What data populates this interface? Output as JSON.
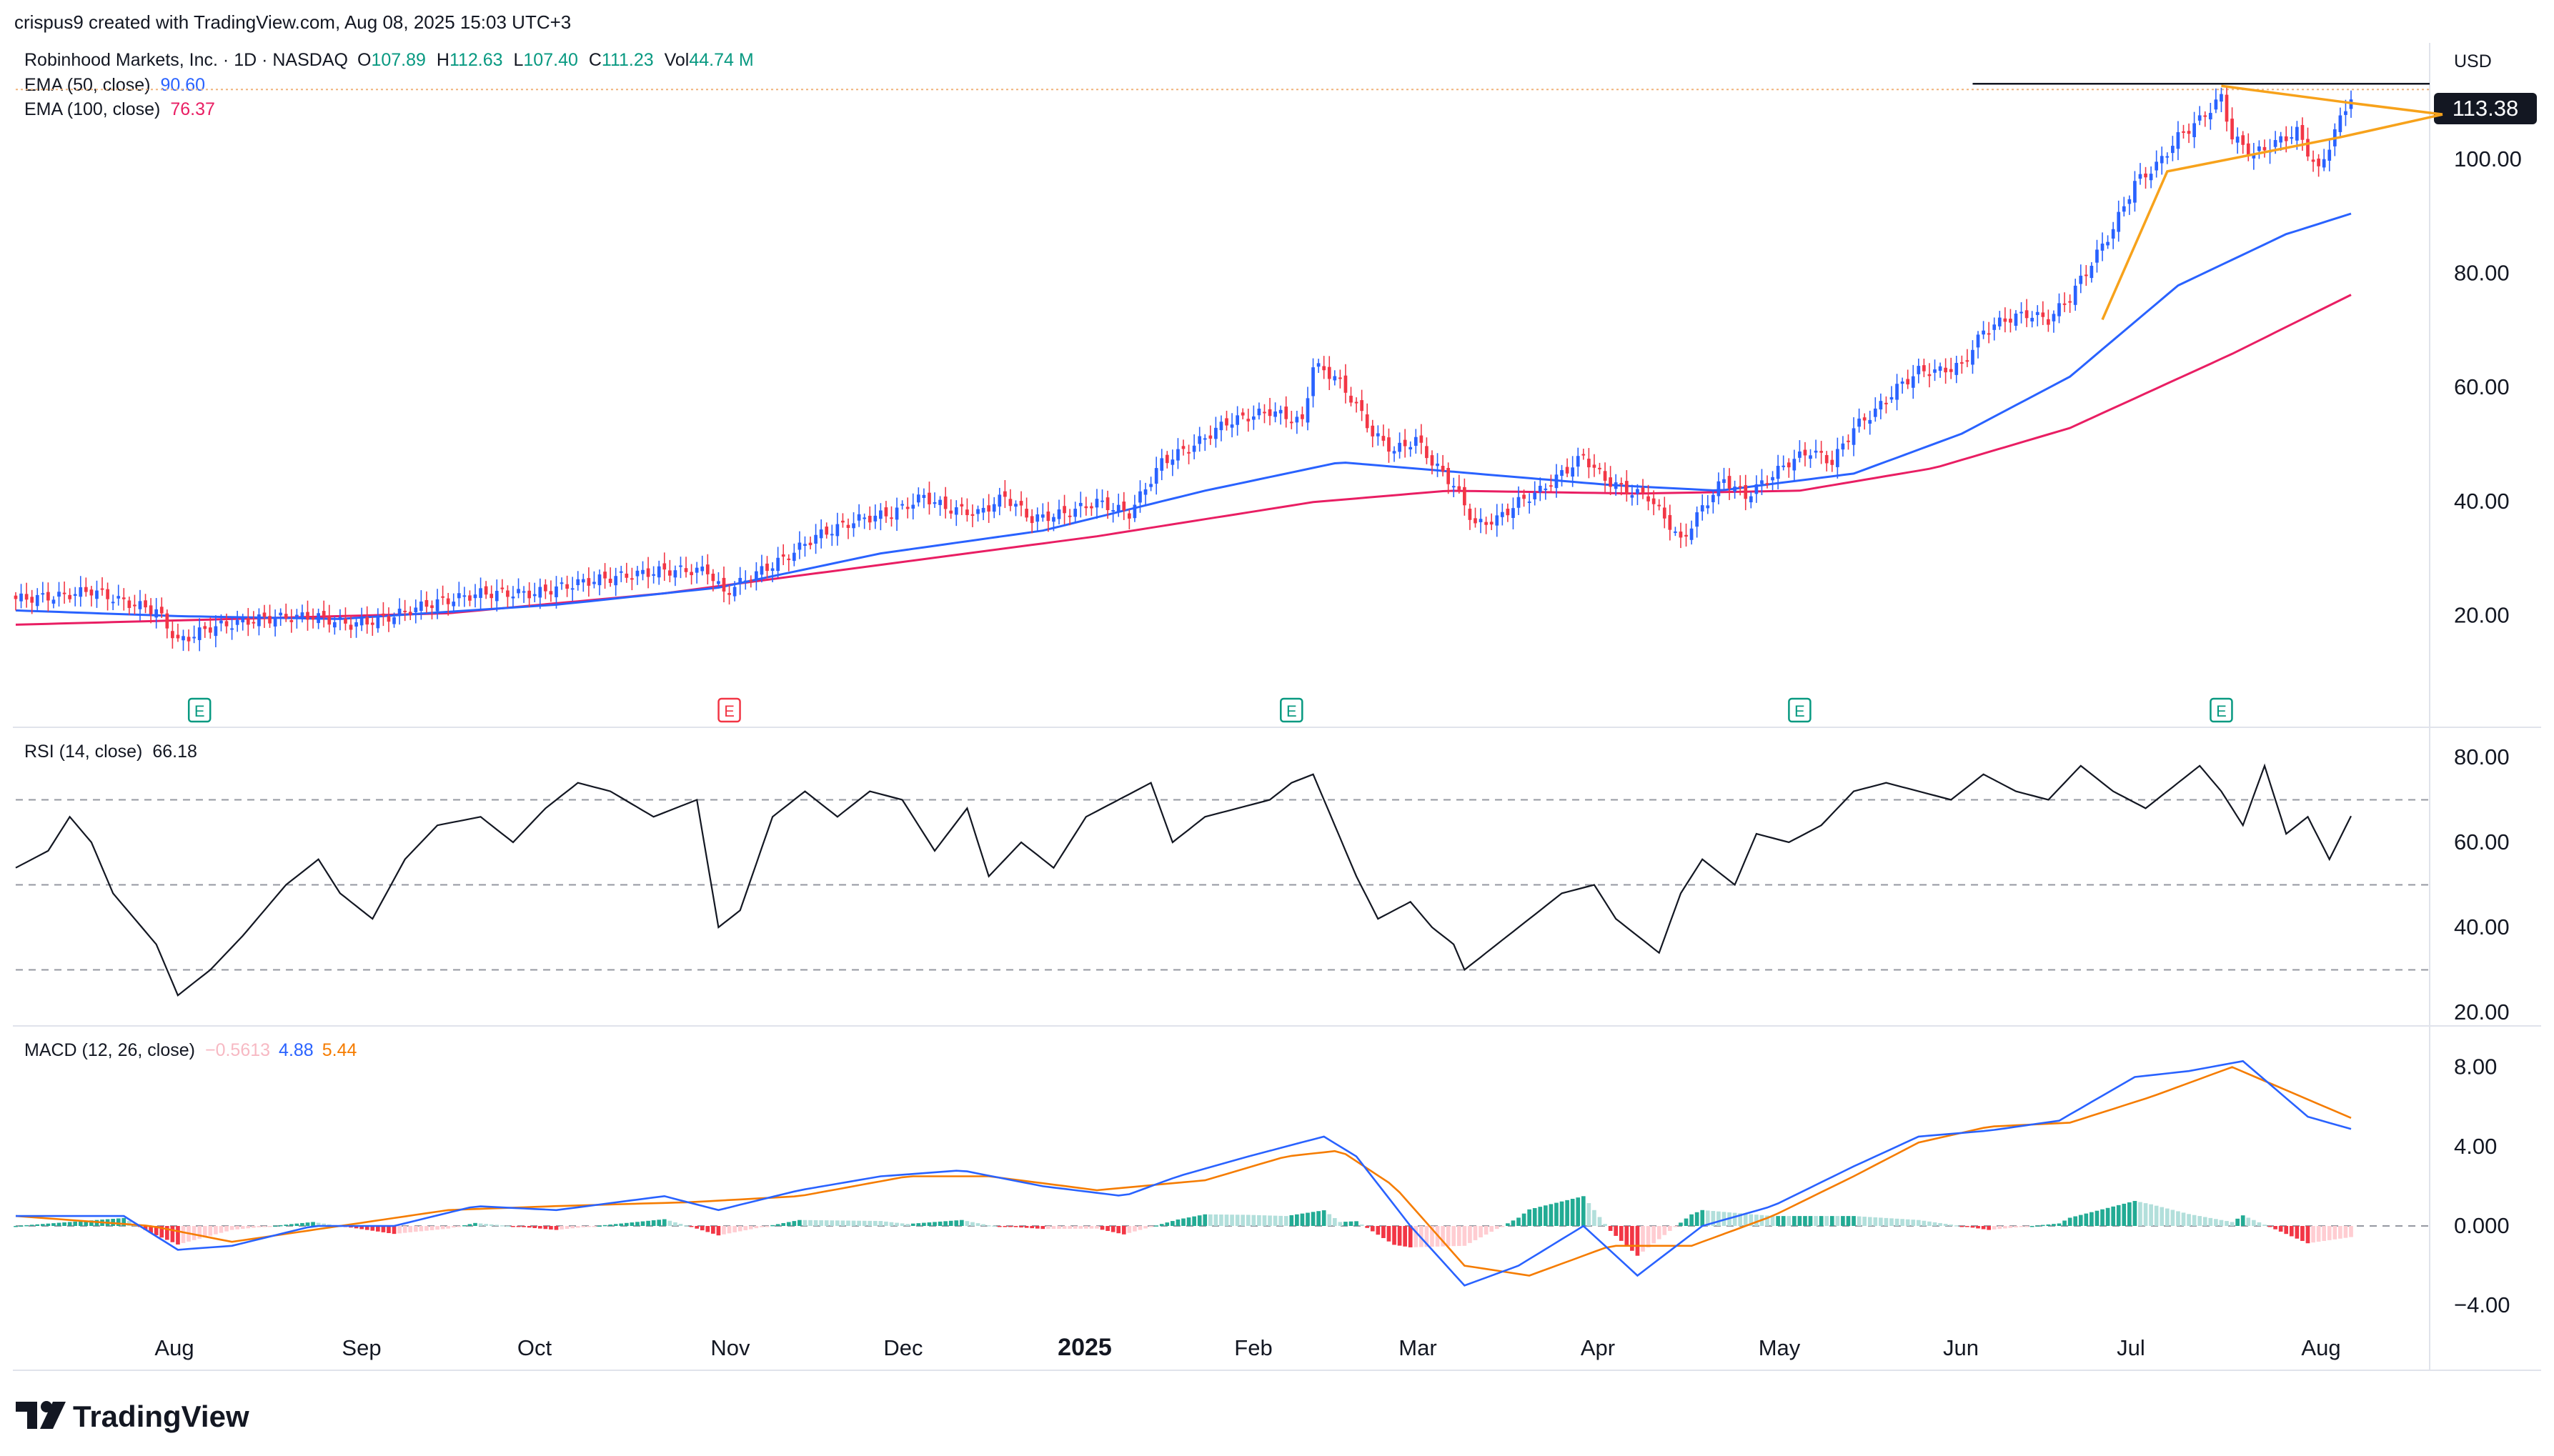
{
  "header": {
    "creator_line": "crispus9 created with TradingView.com, Aug 08, 2025 15:03 UTC+3",
    "symbol_title": "Robinhood Markets, Inc. · 1D · NASDAQ",
    "ohlc": [
      {
        "key": "O",
        "value": "107.89"
      },
      {
        "key": "H",
        "value": "112.63"
      },
      {
        "key": "L",
        "value": "107.40"
      },
      {
        "key": "C",
        "value": "111.23"
      },
      {
        "key": "Vol",
        "value": "44.74 M"
      }
    ],
    "ema50": {
      "label": "EMA (50, close)",
      "value": "90.60"
    },
    "ema100": {
      "label": "EMA (100, close)",
      "value": "76.37"
    }
  },
  "price_axis": {
    "currency": "USD",
    "last_price": "113.38",
    "ticks": [
      "100.00",
      "80.00",
      "60.00",
      "40.00",
      "20.00"
    ]
  },
  "rsi": {
    "label": "RSI (14, close)",
    "value": "66.18",
    "ticks": [
      "80.00",
      "60.00",
      "40.00",
      "20.00"
    ]
  },
  "macd": {
    "label": "MACD (12, 26, close)",
    "hist_value": "−0.5613",
    "macd_value": "4.88",
    "signal_value": "5.44",
    "ticks": [
      "8.00",
      "4.00",
      "0.000",
      "−4.00"
    ]
  },
  "time_axis": [
    "Aug",
    "Sep",
    "Oct",
    "Nov",
    "Dec",
    "2025",
    "Feb",
    "Mar",
    "Apr",
    "May",
    "Jun",
    "Jul",
    "Aug"
  ],
  "earnings_markers": [
    {
      "label": "E",
      "color": "#089981"
    },
    {
      "label": "E",
      "color": "#f23645"
    },
    {
      "label": "E",
      "color": "#089981"
    },
    {
      "label": "E",
      "color": "#089981"
    },
    {
      "label": "E",
      "color": "#089981"
    }
  ],
  "logo": {
    "text": "TradingView"
  },
  "colors": {
    "up": "#2962ff",
    "down": "#f23645",
    "ema50": "#2962ff",
    "ema100": "#e91e63",
    "rsi": "#131722",
    "macd_line": "#2962ff",
    "signal_line": "#f57c00",
    "hist_up": "#22ab94",
    "hist_down": "#f23645",
    "pattern": "#f7a21b"
  },
  "chart_data": [
    {
      "type": "candlestick",
      "title": "Robinhood Markets, Inc. · 1D · NASDAQ",
      "ylabel": "USD",
      "ylim": [
        8,
        118
      ],
      "x_labels": [
        "Aug",
        "Sep",
        "Oct",
        "Nov",
        "Dec",
        "2025",
        "Feb",
        "Mar",
        "Apr",
        "May",
        "Jun",
        "Jul",
        "Aug"
      ],
      "price_path": [
        [
          0,
          23
        ],
        [
          8,
          23.5
        ],
        [
          14,
          24.5
        ],
        [
          20,
          22.5
        ],
        [
          26,
          21
        ],
        [
          30,
          15.5
        ],
        [
          36,
          18
        ],
        [
          45,
          19.5
        ],
        [
          55,
          20
        ],
        [
          62,
          18.5
        ],
        [
          68,
          19.5
        ],
        [
          76,
          22
        ],
        [
          86,
          24
        ],
        [
          96,
          24
        ],
        [
          105,
          26
        ],
        [
          112,
          27
        ],
        [
          120,
          28
        ],
        [
          128,
          28
        ],
        [
          131,
          24
        ],
        [
          136,
          27
        ],
        [
          142,
          30
        ],
        [
          148,
          34
        ],
        [
          156,
          37
        ],
        [
          162,
          38
        ],
        [
          168,
          41
        ],
        [
          172,
          39
        ],
        [
          178,
          38
        ],
        [
          183,
          41
        ],
        [
          188,
          37
        ],
        [
          194,
          38
        ],
        [
          200,
          40
        ],
        [
          206,
          38
        ],
        [
          212,
          47
        ],
        [
          218,
          50
        ],
        [
          224,
          54
        ],
        [
          232,
          56
        ],
        [
          238,
          54
        ],
        [
          240,
          64
        ],
        [
          244,
          62
        ],
        [
          248,
          57
        ],
        [
          251,
          52
        ],
        [
          255,
          49
        ],
        [
          259,
          51
        ],
        [
          262,
          47
        ],
        [
          266,
          43
        ],
        [
          270,
          36
        ],
        [
          274,
          37
        ],
        [
          278,
          40
        ],
        [
          282,
          42
        ],
        [
          286,
          45
        ],
        [
          290,
          48
        ],
        [
          294,
          44
        ],
        [
          298,
          42
        ],
        [
          302,
          41
        ],
        [
          306,
          36
        ],
        [
          308,
          33
        ],
        [
          312,
          39
        ],
        [
          316,
          44
        ],
        [
          320,
          41
        ],
        [
          324,
          44
        ],
        [
          328,
          47
        ],
        [
          332,
          49
        ],
        [
          336,
          47
        ],
        [
          340,
          53
        ],
        [
          344,
          56
        ],
        [
          348,
          60
        ],
        [
          352,
          63
        ],
        [
          356,
          63
        ],
        [
          360,
          64
        ],
        [
          364,
          70
        ],
        [
          368,
          72
        ],
        [
          372,
          73
        ],
        [
          376,
          72
        ],
        [
          380,
          76
        ],
        [
          384,
          82
        ],
        [
          388,
          88
        ],
        [
          392,
          96
        ],
        [
          396,
          99
        ],
        [
          400,
          104
        ],
        [
          404,
          107
        ],
        [
          408,
          111
        ],
        [
          410,
          104
        ],
        [
          414,
          101
        ],
        [
          418,
          103
        ],
        [
          422,
          105
        ],
        [
          426,
          98
        ],
        [
          429,
          105
        ],
        [
          432,
          111.23
        ]
      ],
      "ema50_path": [
        [
          0,
          21
        ],
        [
          30,
          20
        ],
        [
          60,
          19.5
        ],
        [
          100,
          22
        ],
        [
          130,
          25
        ],
        [
          160,
          31
        ],
        [
          190,
          35
        ],
        [
          220,
          42
        ],
        [
          245,
          47
        ],
        [
          270,
          45
        ],
        [
          295,
          43
        ],
        [
          315,
          42
        ],
        [
          340,
          45
        ],
        [
          360,
          52
        ],
        [
          380,
          62
        ],
        [
          400,
          78
        ],
        [
          420,
          87
        ],
        [
          432,
          90.6
        ]
      ],
      "ema100_path": [
        [
          0,
          18.5
        ],
        [
          40,
          19.5
        ],
        [
          80,
          20.5
        ],
        [
          120,
          24
        ],
        [
          160,
          29
        ],
        [
          200,
          34
        ],
        [
          240,
          40
        ],
        [
          265,
          42
        ],
        [
          300,
          41.5
        ],
        [
          330,
          42
        ],
        [
          355,
          46
        ],
        [
          380,
          53
        ],
        [
          410,
          66
        ],
        [
          432,
          76.37
        ]
      ],
      "resistance_level": 113.38,
      "pattern": "pennant"
    },
    {
      "type": "line",
      "title": "RSI (14, close)",
      "ylim": [
        20,
        84
      ],
      "levels": [
        70,
        50,
        30
      ],
      "series": [
        {
          "name": "RSI",
          "values": [
            [
              0,
              54
            ],
            [
              6,
              58
            ],
            [
              10,
              66
            ],
            [
              14,
              60
            ],
            [
              18,
              48
            ],
            [
              22,
              42
            ],
            [
              26,
              36
            ],
            [
              30,
              24
            ],
            [
              36,
              30
            ],
            [
              42,
              38
            ],
            [
              50,
              50
            ],
            [
              56,
              56
            ],
            [
              60,
              48
            ],
            [
              66,
              42
            ],
            [
              72,
              56
            ],
            [
              78,
              64
            ],
            [
              86,
              66
            ],
            [
              92,
              60
            ],
            [
              98,
              68
            ],
            [
              104,
              74
            ],
            [
              110,
              72
            ],
            [
              118,
              66
            ],
            [
              126,
              70
            ],
            [
              130,
              40
            ],
            [
              134,
              44
            ],
            [
              140,
              66
            ],
            [
              146,
              72
            ],
            [
              152,
              66
            ],
            [
              158,
              72
            ],
            [
              164,
              70
            ],
            [
              170,
              58
            ],
            [
              176,
              68
            ],
            [
              180,
              52
            ],
            [
              186,
              60
            ],
            [
              192,
              54
            ],
            [
              198,
              66
            ],
            [
              204,
              70
            ],
            [
              210,
              74
            ],
            [
              214,
              60
            ],
            [
              220,
              66
            ],
            [
              226,
              68
            ],
            [
              232,
              70
            ],
            [
              236,
              74
            ],
            [
              240,
              76
            ],
            [
              244,
              64
            ],
            [
              248,
              52
            ],
            [
              252,
              42
            ],
            [
              258,
              46
            ],
            [
              262,
              40
            ],
            [
              266,
              36
            ],
            [
              268,
              30
            ],
            [
              274,
              36
            ],
            [
              280,
              42
            ],
            [
              286,
              48
            ],
            [
              292,
              50
            ],
            [
              296,
              42
            ],
            [
              300,
              38
            ],
            [
              304,
              34
            ],
            [
              308,
              48
            ],
            [
              312,
              56
            ],
            [
              318,
              50
            ],
            [
              322,
              62
            ],
            [
              328,
              60
            ],
            [
              334,
              64
            ],
            [
              340,
              72
            ],
            [
              346,
              74
            ],
            [
              352,
              72
            ],
            [
              358,
              70
            ],
            [
              364,
              76
            ],
            [
              370,
              72
            ],
            [
              376,
              70
            ],
            [
              382,
              78
            ],
            [
              388,
              72
            ],
            [
              394,
              68
            ],
            [
              400,
              74
            ],
            [
              404,
              78
            ],
            [
              408,
              72
            ],
            [
              412,
              64
            ],
            [
              416,
              78
            ],
            [
              420,
              62
            ],
            [
              424,
              66
            ],
            [
              428,
              56
            ],
            [
              432,
              66.18
            ]
          ]
        }
      ]
    },
    {
      "type": "line",
      "title": "MACD (12, 26, close)",
      "ylim": [
        -5,
        9
      ],
      "series": [
        {
          "name": "MACD",
          "values": [
            [
              0,
              0.5
            ],
            [
              20,
              0.5
            ],
            [
              30,
              -1.2
            ],
            [
              40,
              -1
            ],
            [
              55,
              0
            ],
            [
              70,
              0
            ],
            [
              85,
              1
            ],
            [
              100,
              0.8
            ],
            [
              120,
              1.5
            ],
            [
              130,
              0.8
            ],
            [
              145,
              1.8
            ],
            [
              160,
              2.5
            ],
            [
              175,
              2.8
            ],
            [
              190,
              2
            ],
            [
              205,
              1.5
            ],
            [
              215,
              2.5
            ],
            [
              228,
              3.5
            ],
            [
              242,
              4.5
            ],
            [
              248,
              3.5
            ],
            [
              258,
              0
            ],
            [
              268,
              -3
            ],
            [
              278,
              -2
            ],
            [
              290,
              0
            ],
            [
              300,
              -2.5
            ],
            [
              312,
              0
            ],
            [
              325,
              1
            ],
            [
              340,
              3
            ],
            [
              352,
              4.5
            ],
            [
              365,
              4.8
            ],
            [
              378,
              5.3
            ],
            [
              392,
              7.5
            ],
            [
              402,
              7.8
            ],
            [
              412,
              8.3
            ],
            [
              424,
              5.5
            ],
            [
              432,
              4.88
            ]
          ]
        },
        {
          "name": "Signal",
          "values": [
            [
              0,
              0.5
            ],
            [
              25,
              0
            ],
            [
              40,
              -0.8
            ],
            [
              60,
              0
            ],
            [
              80,
              0.8
            ],
            [
              100,
              1
            ],
            [
              125,
              1.2
            ],
            [
              145,
              1.5
            ],
            [
              165,
              2.5
            ],
            [
              180,
              2.5
            ],
            [
              200,
              1.8
            ],
            [
              220,
              2.3
            ],
            [
              235,
              3.5
            ],
            [
              245,
              3.8
            ],
            [
              255,
              2
            ],
            [
              268,
              -2
            ],
            [
              280,
              -2.5
            ],
            [
              295,
              -1
            ],
            [
              310,
              -1
            ],
            [
              325,
              0.5
            ],
            [
              340,
              2.5
            ],
            [
              352,
              4.2
            ],
            [
              365,
              5
            ],
            [
              380,
              5.2
            ],
            [
              395,
              6.5
            ],
            [
              410,
              8
            ],
            [
              432,
              5.44
            ]
          ]
        }
      ],
      "histogram_last": -0.5613
    }
  ]
}
